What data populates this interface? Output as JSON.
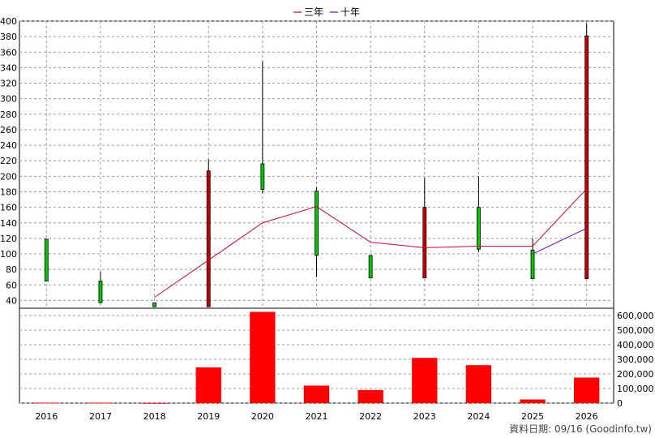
{
  "chart_data": {
    "type": "candlestick",
    "categories": [
      "2016",
      "2017",
      "2018",
      "2019",
      "2020",
      "2021",
      "2022",
      "2023",
      "2024",
      "2025",
      "2026"
    ],
    "price_panel": {
      "ylim": [
        30,
        400
      ],
      "yticks": [
        40,
        60,
        80,
        100,
        120,
        140,
        160,
        180,
        200,
        220,
        240,
        260,
        280,
        300,
        320,
        340,
        360,
        380,
        400
      ],
      "candles": [
        {
          "open": 65,
          "close": 119,
          "high": 119,
          "low": 65
        },
        {
          "open": 37,
          "close": 65,
          "high": 77,
          "low": 37
        },
        {
          "open": 32,
          "close": 37,
          "high": 37,
          "low": 32
        },
        {
          "open": 207,
          "close": 32,
          "high": 222,
          "low": 32
        },
        {
          "open": 183,
          "close": 216,
          "high": 348,
          "low": 178
        },
        {
          "open": 98,
          "close": 181,
          "high": 186,
          "low": 70
        },
        {
          "open": 69,
          "close": 98,
          "high": 98,
          "low": 69
        },
        {
          "open": 160,
          "close": 69,
          "high": 198,
          "low": 69
        },
        {
          "open": 106,
          "close": 160,
          "high": 200,
          "low": 102
        },
        {
          "open": 68,
          "close": 105,
          "high": 120,
          "low": 68
        },
        {
          "open": 381,
          "close": 68,
          "high": 397,
          "low": 68
        }
      ],
      "series": [
        {
          "name": "三年",
          "color": "#cc0044",
          "values": [
            null,
            null,
            44,
            92,
            140,
            161,
            115,
            108,
            110,
            110,
            184
          ]
        },
        {
          "name": "十年",
          "color": "#6600cc",
          "values": [
            null,
            null,
            null,
            null,
            null,
            null,
            null,
            null,
            null,
            100,
            133
          ]
        }
      ],
      "up_color": "#00cc00",
      "down_color": "#cc0000"
    },
    "volume_panel": {
      "ylim": [
        0,
        650000
      ],
      "yticks": [
        0,
        100000,
        200000,
        300000,
        400000,
        500000,
        600000
      ],
      "ytick_labels": [
        "0",
        "100,000",
        "200,000",
        "300,000",
        "400,000",
        "500,000",
        "600,000"
      ],
      "values": [
        3000,
        3000,
        0,
        245000,
        625000,
        120000,
        90000,
        310000,
        260000,
        25000,
        175000
      ],
      "color": "#ff0000"
    },
    "grid": true,
    "legend": "top-center",
    "source_text": "資料日期: 09/16 (Goodinfo.tw)"
  }
}
